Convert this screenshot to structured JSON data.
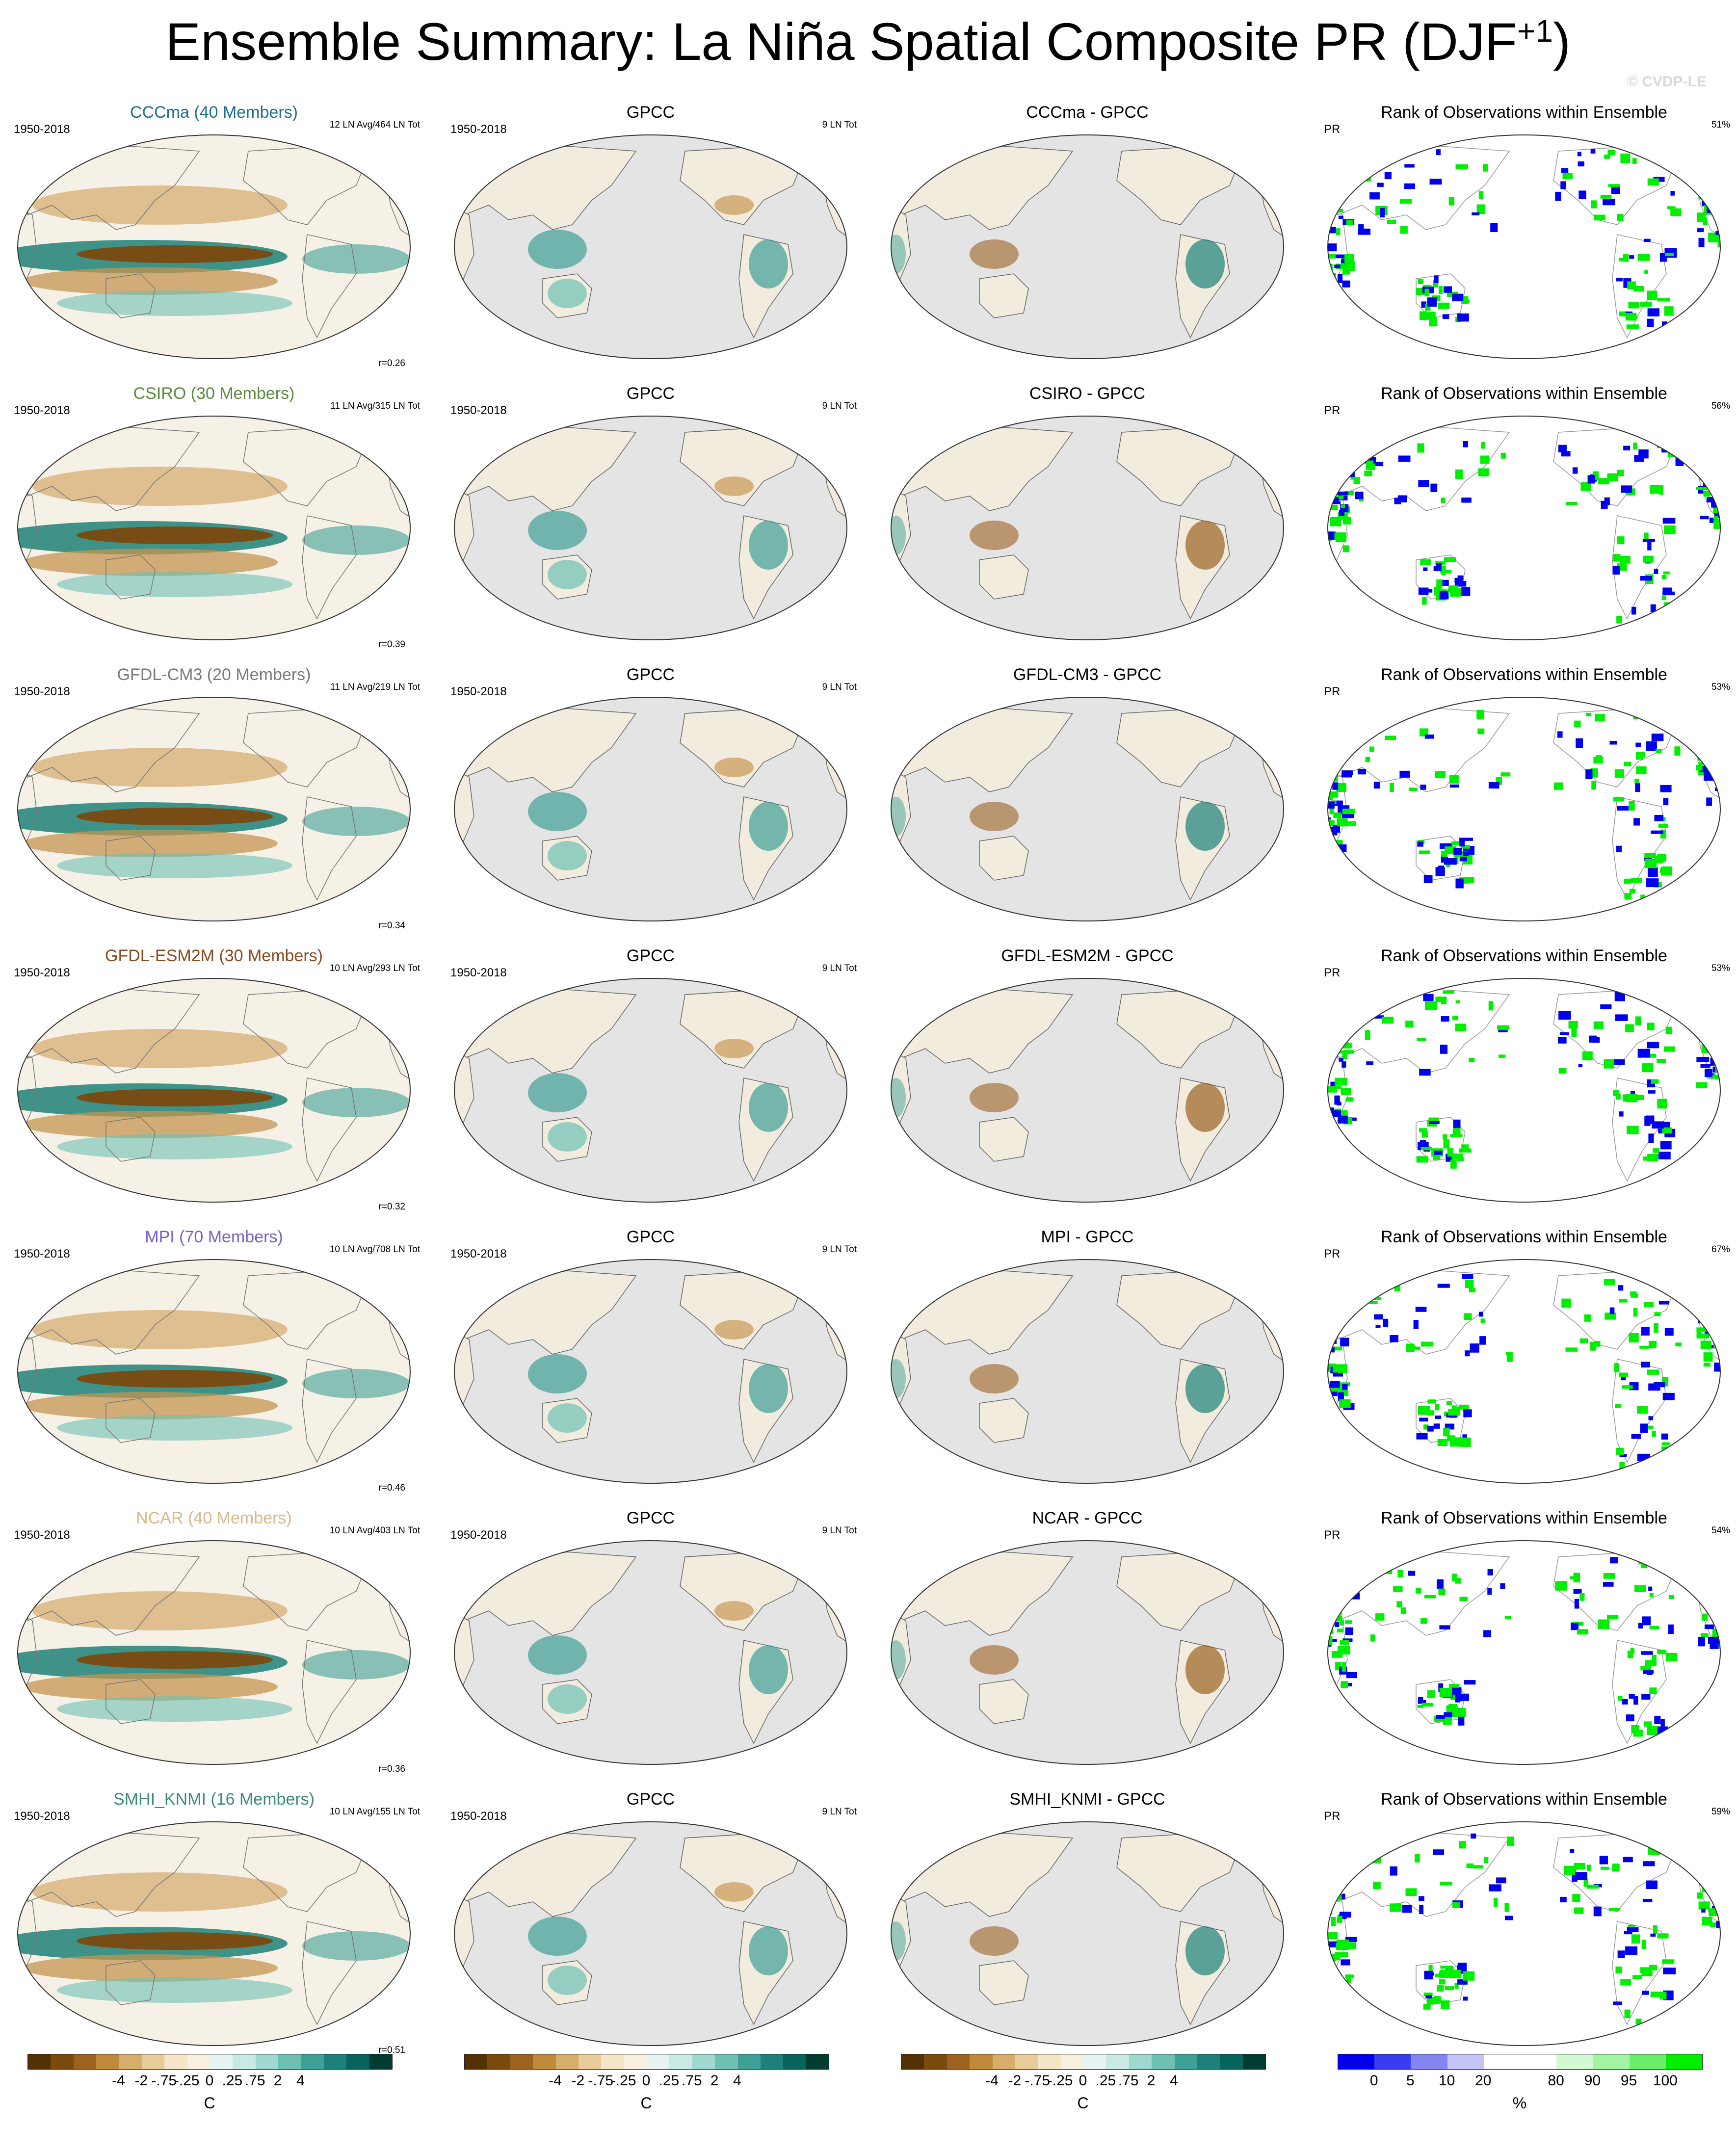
{
  "title": {
    "main": "Ensemble Summary: La Niña Spatial Composite PR (DJF",
    "sup": "+1",
    "close": ")"
  },
  "watermark": "© CVDP-LE",
  "rows": [
    {
      "model": "CCCma (40 Members)",
      "model_short": "CCCma",
      "color": "#1f6f8b",
      "period": "1950-2018",
      "events": "12 LN Avg/464 LN Tot",
      "obs_events": "9 LN Tot",
      "r": "r=0.26",
      "rank_pct": "51%"
    },
    {
      "model": "CSIRO (30 Members)",
      "model_short": "CSIRO",
      "color": "#5a8a3c",
      "period": "1950-2018",
      "events": "11 LN Avg/315 LN Tot",
      "obs_events": "9 LN Tot",
      "r": "r=0.39",
      "rank_pct": "56%"
    },
    {
      "model": "GFDL-CM3 (20 Members)",
      "model_short": "GFDL-CM3",
      "color": "#7a7a7a",
      "period": "1950-2018",
      "events": "11 LN Avg/219 LN Tot",
      "obs_events": "9 LN Tot",
      "r": "r=0.34",
      "rank_pct": "53%"
    },
    {
      "model": "GFDL-ESM2M (30 Members)",
      "model_short": "GFDL-ESM2M",
      "color": "#8b4a1c",
      "period": "1950-2018",
      "events": "10 LN Avg/293 LN Tot",
      "obs_events": "9 LN Tot",
      "r": "r=0.32",
      "rank_pct": "53%"
    },
    {
      "model": "MPI (70 Members)",
      "model_short": "MPI",
      "color": "#7b5fc4",
      "period": "1950-2018",
      "events": "10 LN Avg/708 LN Tot",
      "obs_events": "9 LN Tot",
      "r": "r=0.46",
      "rank_pct": "67%"
    },
    {
      "model": "NCAR (40 Members)",
      "model_short": "NCAR",
      "color": "#d9b98a",
      "period": "1950-2018",
      "events": "10 LN Avg/403 LN Tot",
      "obs_events": "9 LN Tot",
      "r": "r=0.36",
      "rank_pct": "54%"
    },
    {
      "model": "SMHI_KNMI (16 Members)",
      "model_short": "SMHI_KNMI",
      "color": "#3e8a7a",
      "period": "1950-2018",
      "events": "10 LN Avg/155 LN Tot",
      "obs_events": "9 LN Tot",
      "r": "r=0.51",
      "rank_pct": "59%"
    }
  ],
  "labels": {
    "obs": "GPCC",
    "diff_suffix": " - GPCC",
    "rank": "Rank of Observations within Ensemble",
    "rank_var": "PR"
  },
  "colorbars": {
    "diverging": {
      "colors": [
        "#543005",
        "#7a4a0f",
        "#9c6221",
        "#bf8a3c",
        "#d6ad6b",
        "#e8cc9a",
        "#f4e6c6",
        "#f7f0e0",
        "#e6f3f1",
        "#c9e9e4",
        "#9fd8cf",
        "#6ec0b3",
        "#3fa096",
        "#1d8177",
        "#07645a",
        "#003c30"
      ],
      "tick_labels": [
        "-4",
        "-2",
        "-.75",
        "-.25",
        "0",
        ".25",
        ".75",
        "2",
        "4"
      ],
      "unit": "C"
    },
    "rank": {
      "colors": [
        "#0000ee",
        "#3b3bf0",
        "#8585f2",
        "#c4c4f6",
        "#ffffff",
        "#ffffff",
        "#d4f8d4",
        "#a4f3a4",
        "#6cee6c",
        "#00ee00"
      ],
      "tick_labels": [
        "0",
        "5",
        "10",
        "20",
        "80",
        "90",
        "95",
        "100"
      ],
      "unit": "%"
    }
  }
}
